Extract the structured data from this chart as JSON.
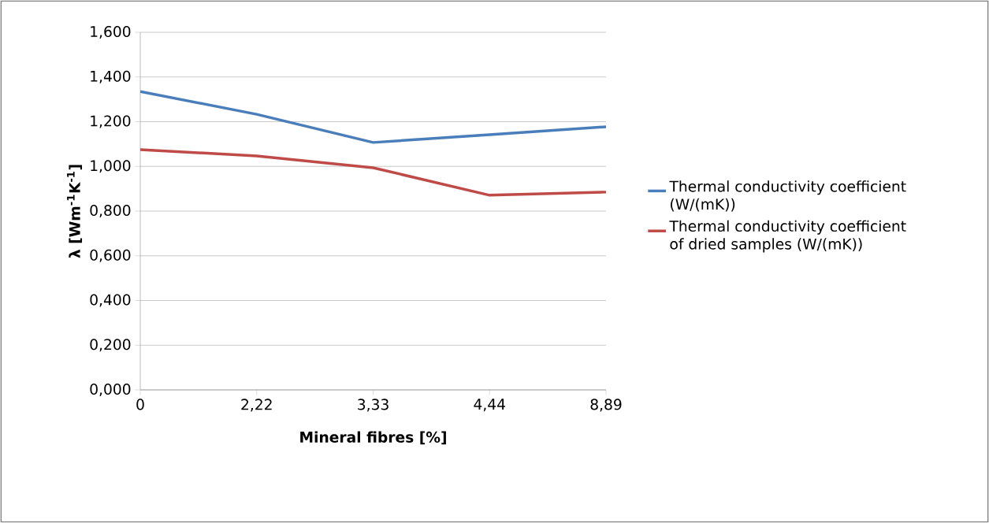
{
  "chart_data": {
    "type": "line",
    "xlabel": "Mineral fibres [%]",
    "ylabel": "λ [Wm$^{-1}$K$^{-1}$]",
    "categories": [
      "0",
      "2,22",
      "3,33",
      "4,44",
      "8,89"
    ],
    "series": [
      {
        "name": "Thermal conductivity coefficient (W/(mK))",
        "color": "#4a7ebb",
        "values": [
          1.335,
          1.233,
          1.107,
          1.142,
          1.177
        ]
      },
      {
        "name": "Thermal conductivity coefficient of dried samples (W/(mK))",
        "color": "#be4b48",
        "values": [
          1.075,
          1.047,
          0.994,
          0.871,
          0.885
        ]
      }
    ],
    "ylim": [
      0,
      1.6
    ],
    "yticks": [
      {
        "value": 0,
        "label": "0,000"
      },
      {
        "value": 0.2,
        "label": "0,200"
      },
      {
        "value": 0.4,
        "label": "0,400"
      },
      {
        "value": 0.6,
        "label": "0,600"
      },
      {
        "value": 0.8,
        "label": "0,800"
      },
      {
        "value": 1.0,
        "label": "1,000"
      },
      {
        "value": 1.2,
        "label": "1,200"
      },
      {
        "value": 1.4,
        "label": "1,400"
      },
      {
        "value": 1.6,
        "label": "1,600"
      }
    ],
    "grid": "y",
    "legend": "right",
    "marker": "none",
    "line_style": "solid"
  }
}
